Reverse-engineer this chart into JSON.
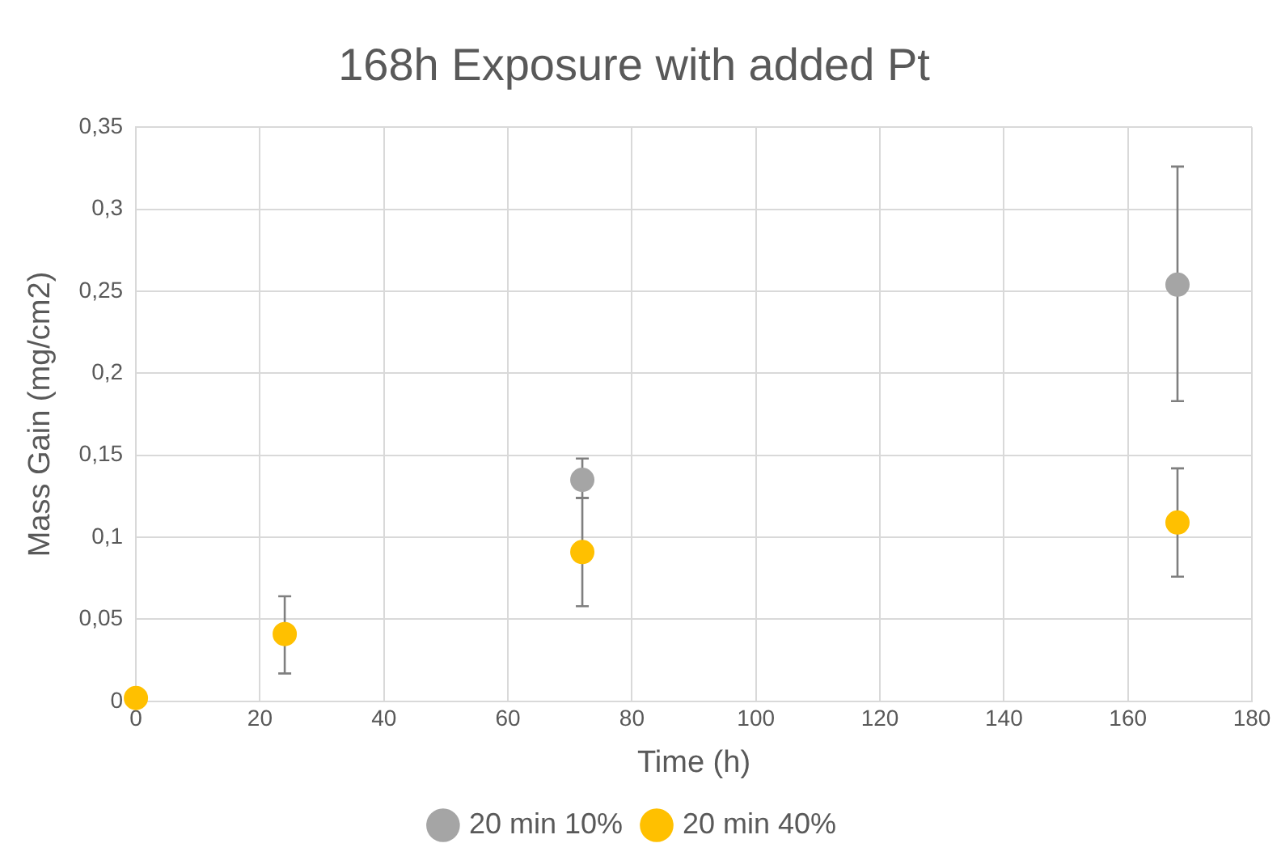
{
  "chart_data": {
    "type": "scatter",
    "title": "168h Exposure with added Pt",
    "xlabel": "Time (h)",
    "ylabel": "Mass Gain (mg/cm2)",
    "xlim": [
      0,
      180
    ],
    "xticks": [
      0,
      20,
      40,
      60,
      80,
      100,
      120,
      140,
      160,
      180
    ],
    "ylim": [
      0,
      0.35
    ],
    "yticks": [
      0,
      {
        "value": 0.05,
        "label": "0,05"
      },
      {
        "value": 0.1,
        "label": "0,1"
      },
      {
        "value": 0.15,
        "label": "0,15"
      },
      {
        "value": 0.2,
        "label": "0,2"
      },
      {
        "value": 0.25,
        "label": "0,25"
      },
      {
        "value": 0.3,
        "label": "0,3"
      },
      {
        "value": 0.35,
        "label": "0,35"
      }
    ],
    "grid": true,
    "legend": "bottom",
    "marker": "circle",
    "series": [
      {
        "name": "20 min 10%",
        "color": "#a5a5a5",
        "x": [
          72,
          168
        ],
        "values": [
          0.135,
          0.254
        ],
        "errors": [
          [
            0.124,
            0.148
          ],
          [
            0.183,
            0.326
          ]
        ]
      },
      {
        "name": "20 min 40%",
        "color": "#ffc000",
        "x": [
          0,
          24,
          72,
          168
        ],
        "values": [
          0.002,
          0.041,
          0.091,
          0.109
        ],
        "errors": [
          null,
          [
            0.017,
            0.064
          ],
          [
            0.058,
            0.124
          ],
          [
            0.076,
            0.142
          ]
        ]
      }
    ]
  }
}
